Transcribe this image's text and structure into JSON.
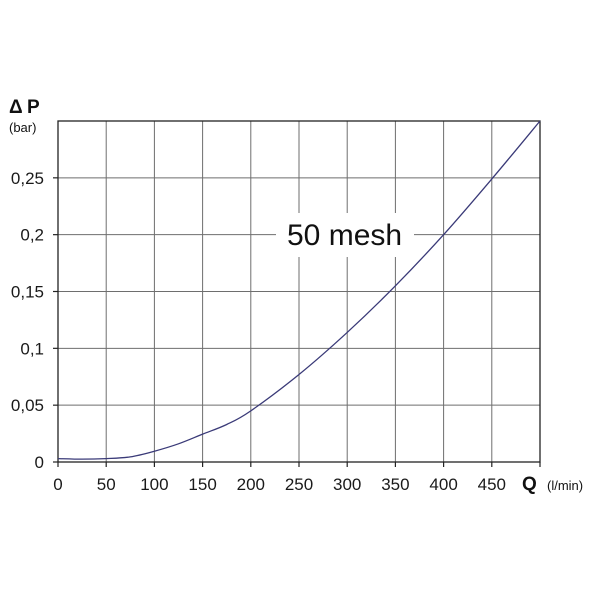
{
  "chart_data": {
    "type": "line",
    "y_label": {
      "symbol": "Δ",
      "letter": "P",
      "unit": "(bar)"
    },
    "x_label": {
      "letter": "Q",
      "unit": "(l/min)"
    },
    "xlim": [
      0,
      500
    ],
    "ylim": [
      0,
      0.3
    ],
    "grid": true,
    "x_ticks": [
      {
        "value": 0,
        "label": "0"
      },
      {
        "value": 50,
        "label": "50"
      },
      {
        "value": 100,
        "label": "100"
      },
      {
        "value": 150,
        "label": "150"
      },
      {
        "value": 200,
        "label": "200"
      },
      {
        "value": 250,
        "label": "250"
      },
      {
        "value": 300,
        "label": "300"
      },
      {
        "value": 350,
        "label": "350"
      },
      {
        "value": 400,
        "label": "400"
      },
      {
        "value": 450,
        "label": "450"
      }
    ],
    "y_ticks": [
      {
        "value": 0,
        "label": "0"
      },
      {
        "value": 0.05,
        "label": "0,05"
      },
      {
        "value": 0.1,
        "label": "0,1"
      },
      {
        "value": 0.15,
        "label": "0,15"
      },
      {
        "value": 0.2,
        "label": "0,2"
      },
      {
        "value": 0.25,
        "label": "0,25"
      }
    ],
    "series": [
      {
        "name": "50 mesh",
        "color": "#3a3a78",
        "points": [
          [
            0,
            0.003
          ],
          [
            25,
            0.0025
          ],
          [
            50,
            0.003
          ],
          [
            75,
            0.0045
          ],
          [
            100,
            0.0095
          ],
          [
            125,
            0.016
          ],
          [
            150,
            0.0245
          ],
          [
            175,
            0.033
          ],
          [
            200,
            0.045
          ],
          [
            250,
            0.077
          ],
          [
            300,
            0.114
          ],
          [
            350,
            0.155
          ],
          [
            400,
            0.2
          ],
          [
            450,
            0.249
          ],
          [
            500,
            0.3
          ]
        ]
      }
    ],
    "series_label": "50 mesh"
  }
}
